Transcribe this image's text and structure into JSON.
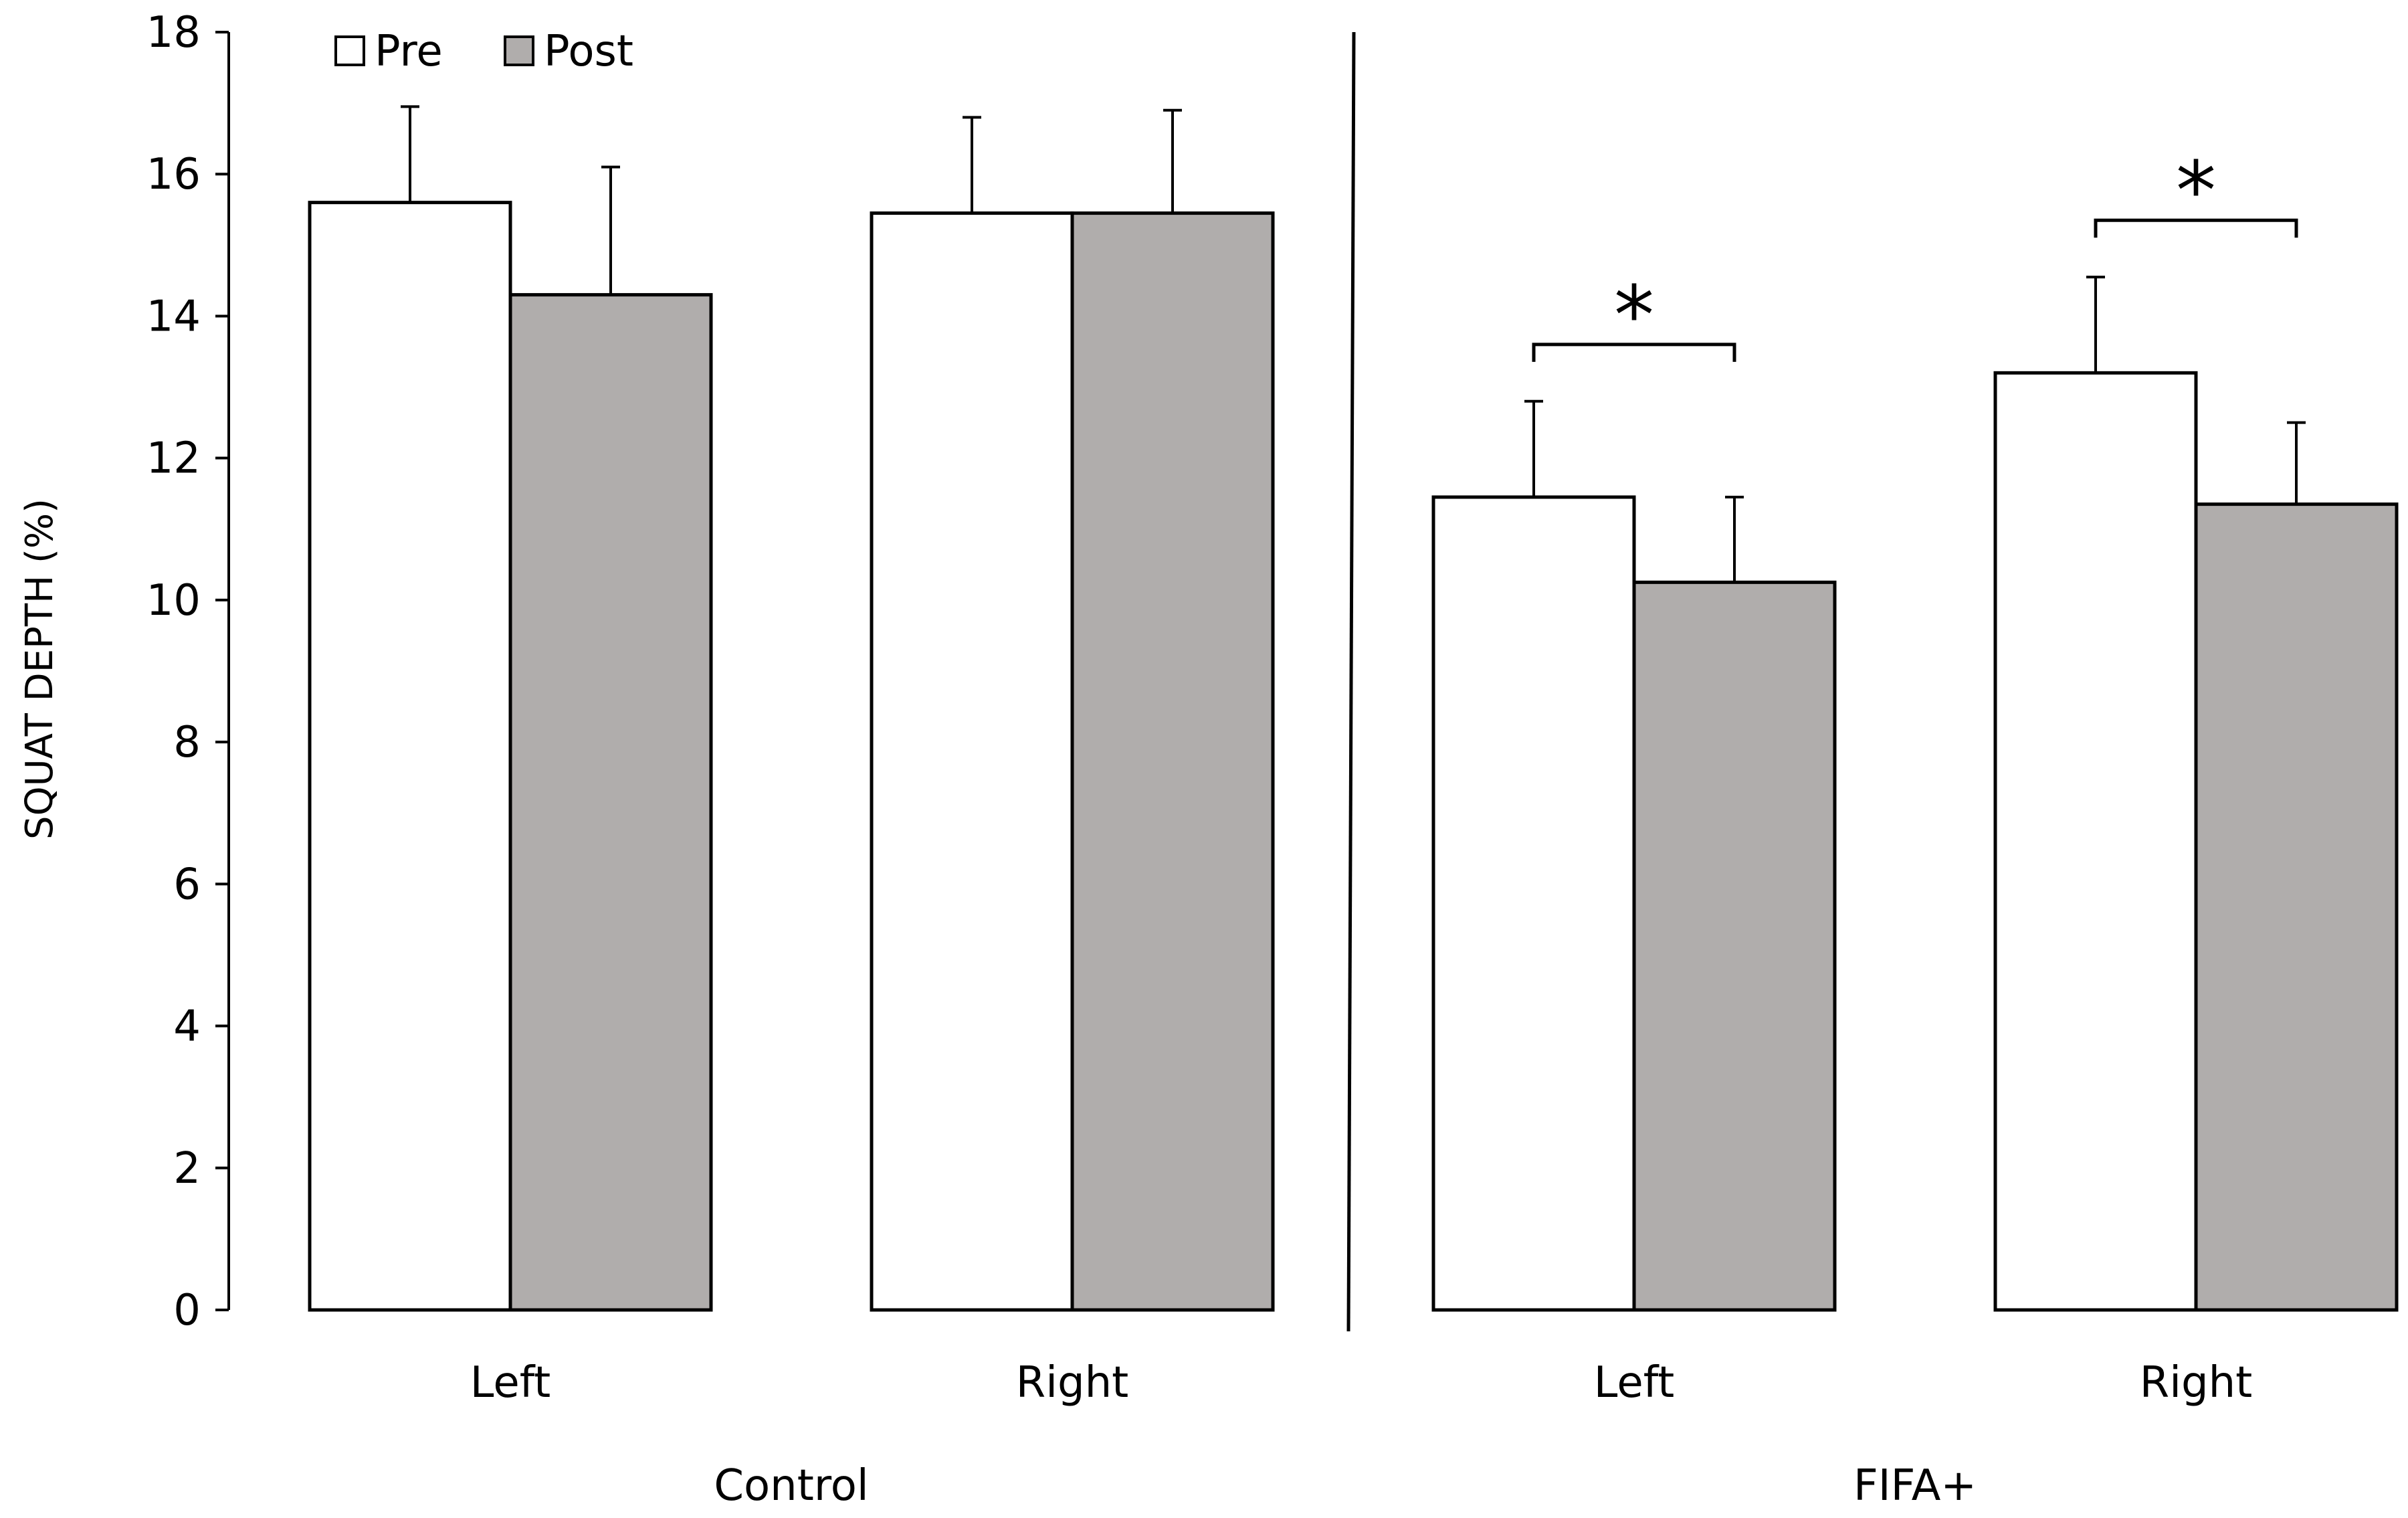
{
  "chart_data": {
    "type": "bar",
    "ylabel": "SQUAT DEPTH (%)",
    "ylim": [
      0,
      18
    ],
    "yticks": [
      "0",
      "2",
      "4",
      "6",
      "8",
      "10",
      "12",
      "14",
      "16",
      "18"
    ],
    "groups": [
      {
        "name": "Control",
        "categories": [
          "Left",
          "Right"
        ]
      },
      {
        "name": "FIFA+",
        "categories": [
          "Left",
          "Right"
        ]
      }
    ],
    "categories": [
      "Left",
      "Right",
      "Left",
      "Right"
    ],
    "series": [
      {
        "name": "Pre",
        "color": "#ffffff",
        "values": [
          15.6,
          15.45,
          11.45,
          13.2
        ],
        "error": [
          1.35,
          1.35,
          1.35,
          1.35
        ]
      },
      {
        "name": "Post",
        "color": "#b0adac",
        "values": [
          14.3,
          15.45,
          10.25,
          11.35
        ],
        "error": [
          1.8,
          1.45,
          1.2,
          1.15
        ]
      }
    ],
    "significance": [
      {
        "category_index": 2,
        "label": "*"
      },
      {
        "category_index": 3,
        "label": "*"
      }
    ],
    "legend": "top-left",
    "grid": false
  }
}
